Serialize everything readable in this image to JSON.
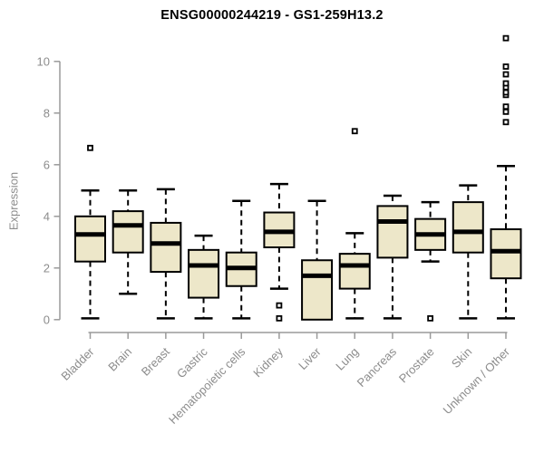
{
  "chart_data": {
    "type": "boxplot",
    "title": "ENSG00000244219 - GS1-259H13.2",
    "ylabel": "Expression",
    "xlabel": "",
    "ylim": [
      0,
      11
    ],
    "yticks": [
      0,
      2,
      4,
      6,
      8,
      10
    ],
    "grid": false,
    "legend": false,
    "colors": {
      "box_fill": "#ede7c9",
      "box_stroke": "#000000",
      "median": "#000000",
      "whisker": "#000000",
      "outlier": "#000000",
      "axis": "#9a9a9a",
      "text": "#8c8c8c",
      "title": "#000000"
    },
    "categories": [
      "Bladder",
      "Brain",
      "Breast",
      "Gastric",
      "Hematopoietic cells",
      "Kidney",
      "Liver",
      "Lung",
      "Pancreas",
      "Prostate",
      "Skin",
      "Unknown / Other"
    ],
    "boxes": [
      {
        "category": "Bladder",
        "whisker_low": 0.05,
        "q1": 2.25,
        "median": 3.3,
        "q3": 4.0,
        "whisker_high": 5.0,
        "outliers": [
          6.65
        ]
      },
      {
        "category": "Brain",
        "whisker_low": 1.0,
        "q1": 2.6,
        "median": 3.65,
        "q3": 4.2,
        "whisker_high": 5.0,
        "outliers": []
      },
      {
        "category": "Breast",
        "whisker_low": 0.05,
        "q1": 1.85,
        "median": 2.95,
        "q3": 3.75,
        "whisker_high": 5.05,
        "outliers": []
      },
      {
        "category": "Gastric",
        "whisker_low": 0.05,
        "q1": 0.85,
        "median": 2.1,
        "q3": 2.7,
        "whisker_high": 3.25,
        "outliers": []
      },
      {
        "category": "Hematopoietic cells",
        "whisker_low": 0.05,
        "q1": 1.3,
        "median": 2.0,
        "q3": 2.6,
        "whisker_high": 4.6,
        "outliers": []
      },
      {
        "category": "Kidney",
        "whisker_low": 1.2,
        "q1": 2.8,
        "median": 3.4,
        "q3": 4.15,
        "whisker_high": 5.25,
        "outliers": [
          0.55,
          0.05
        ]
      },
      {
        "category": "Liver",
        "whisker_low": 0.0,
        "q1": 0.0,
        "median": 1.7,
        "q3": 2.3,
        "whisker_high": 4.6,
        "outliers": []
      },
      {
        "category": "Lung",
        "whisker_low": 0.05,
        "q1": 1.2,
        "median": 2.1,
        "q3": 2.55,
        "whisker_high": 3.35,
        "outliers": [
          7.3
        ]
      },
      {
        "category": "Pancreas",
        "whisker_low": 0.05,
        "q1": 2.4,
        "median": 3.8,
        "q3": 4.4,
        "whisker_high": 4.8,
        "outliers": []
      },
      {
        "category": "Prostate",
        "whisker_low": 2.25,
        "q1": 2.7,
        "median": 3.3,
        "q3": 3.9,
        "whisker_high": 4.55,
        "outliers": [
          0.05
        ]
      },
      {
        "category": "Skin",
        "whisker_low": 0.05,
        "q1": 2.6,
        "median": 3.4,
        "q3": 4.55,
        "whisker_high": 5.2,
        "outliers": []
      },
      {
        "category": "Unknown / Other",
        "whisker_low": 0.05,
        "q1": 1.6,
        "median": 2.65,
        "q3": 3.5,
        "whisker_high": 5.95,
        "outliers": [
          7.65,
          8.05,
          8.25,
          8.7,
          8.8,
          9.0,
          9.15,
          9.5,
          9.8,
          10.9
        ]
      }
    ]
  }
}
